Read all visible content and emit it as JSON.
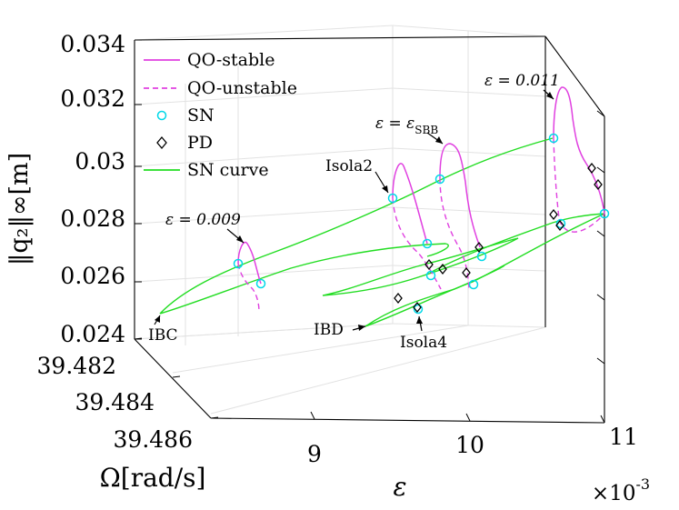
{
  "chart_data": {
    "type": "line",
    "title": "",
    "xlabel": "ε",
    "ylabel": "Ω[rad/s]",
    "zlabel": "‖q₂‖∞[m]",
    "x_ticks": [
      "9",
      "10",
      "11"
    ],
    "x_multiplier": "×10",
    "x_multiplier_exp": "-3",
    "y_ticks": [
      "39.482",
      "39.484",
      "39.486"
    ],
    "z_ticks": [
      "0.024",
      "0.026",
      "0.028",
      "0.03",
      "0.032",
      "0.034"
    ],
    "xlim": [
      0.0081,
      0.011
    ],
    "ylim": [
      39.481,
      39.486
    ],
    "zlim": [
      0.024,
      0.034
    ],
    "grid": true,
    "legend_position": "top-left",
    "legend": [
      {
        "label": "QO-stable",
        "style": "solid",
        "color": "#e040e0"
      },
      {
        "label": "QO-unstable",
        "style": "dashed",
        "color": "#e040e0"
      },
      {
        "label": "SN",
        "marker": "circle",
        "color": "#00d8e8"
      },
      {
        "label": "PD",
        "marker": "diamond",
        "color": "#000000"
      },
      {
        "label": "SN curve",
        "style": "solid",
        "color": "#22dd22"
      }
    ],
    "annotations": [
      "ε = 0.009",
      "ε = ε",
      "SBB",
      "ε = 0.011",
      "Isola2",
      "IBC",
      "IBD",
      "Isola4"
    ],
    "series": [
      {
        "name": "QO-stable",
        "values": [
          0.0265,
          0.0271,
          0.0286,
          0.0301,
          0.0321
        ]
      },
      {
        "name": "QO-unstable",
        "values": [
          0.0258,
          0.0262,
          0.0275,
          0.0272,
          0.0268
        ]
      },
      {
        "name": "SN curve",
        "values": [
          0.0246,
          0.0266,
          0.0281,
          0.0297
        ]
      }
    ]
  },
  "colors": {
    "stable": "#e040e0",
    "curve": "#22dd22",
    "sn": "#00d8e8",
    "pd": "#000000",
    "grid": "#e2e2e2",
    "box": "#000000"
  }
}
